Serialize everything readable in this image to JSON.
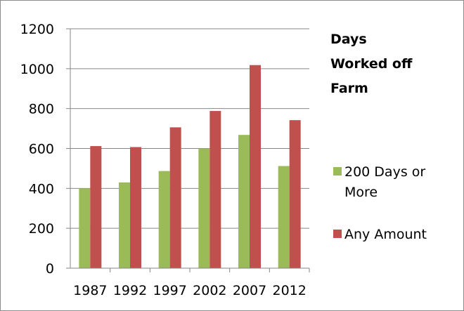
{
  "chart_data": {
    "type": "bar",
    "title_lines": [
      "Days",
      "Worked off",
      "Farm"
    ],
    "categories": [
      "1987",
      "1992",
      "1997",
      "2002",
      "2007",
      "2012"
    ],
    "series": [
      {
        "name": "200 Days or More",
        "name_lines": [
          "200 Days or",
          "More"
        ],
        "color": "#9bbb59",
        "values": [
          400,
          430,
          487,
          600,
          668,
          512
        ]
      },
      {
        "name": "Any Amount",
        "name_lines": [
          "Any Amount"
        ],
        "color": "#c0504d",
        "values": [
          612,
          607,
          706,
          788,
          1018,
          742
        ]
      }
    ],
    "yticks": [
      0,
      200,
      400,
      600,
      800,
      1000,
      1200
    ],
    "ylim": [
      0,
      1200
    ],
    "grid": true,
    "legend": "right"
  }
}
